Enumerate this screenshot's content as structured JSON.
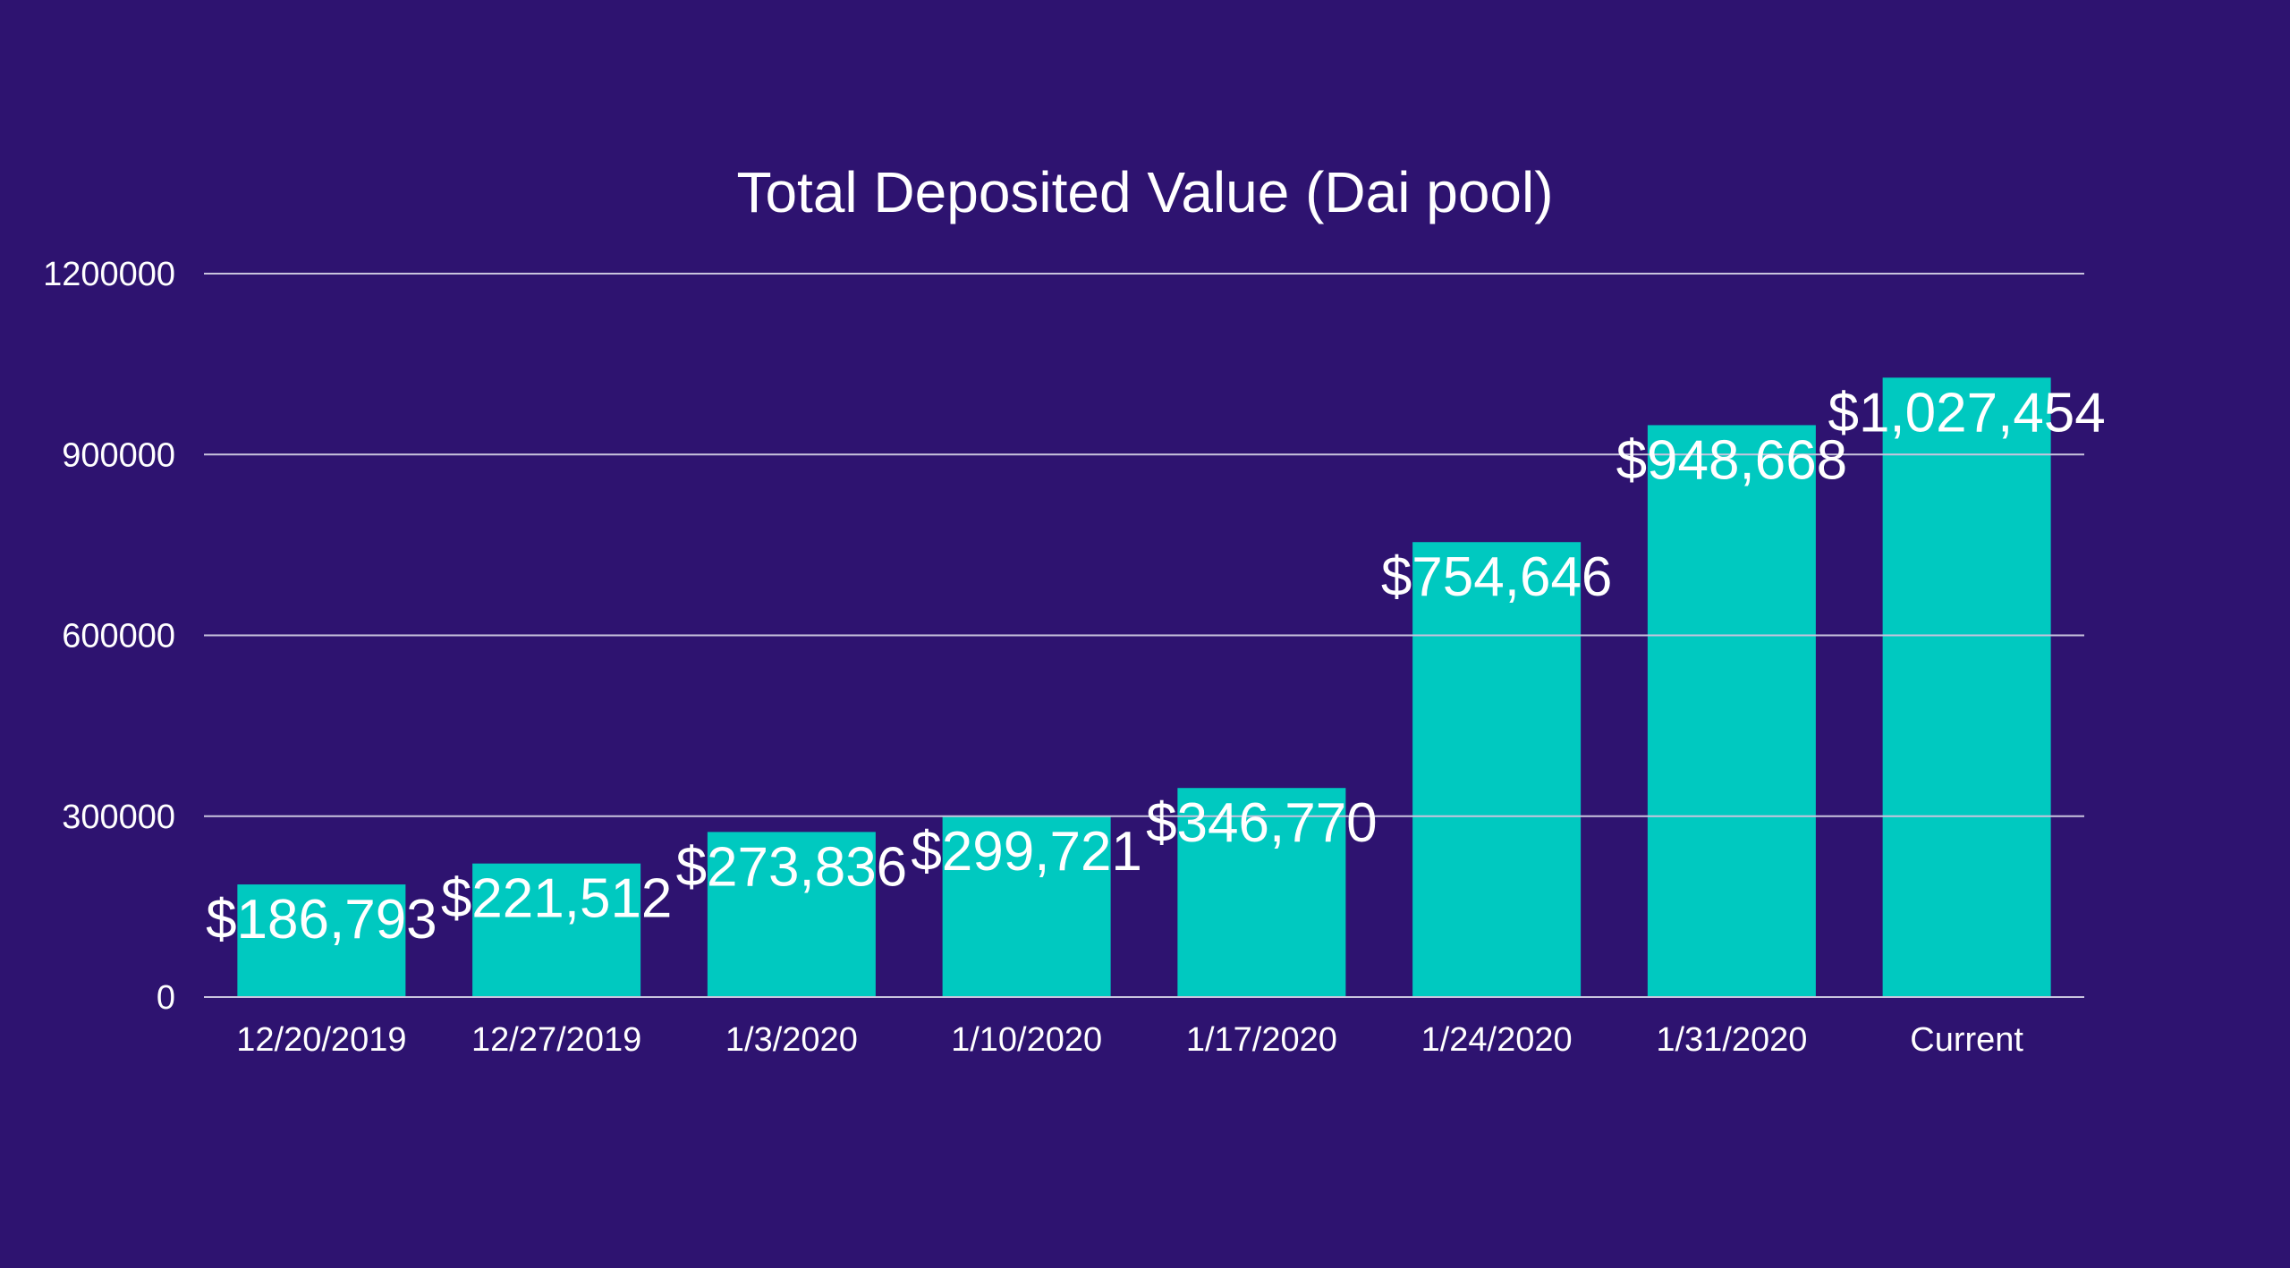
{
  "chart_data": {
    "type": "bar",
    "title": "Total Deposited Value (Dai pool)",
    "xlabel": "",
    "ylabel": "",
    "categories": [
      "12/20/2019",
      "12/27/2019",
      "1/3/2020",
      "1/10/2020",
      "1/17/2020",
      "1/24/2020",
      "1/31/2020",
      "Current"
    ],
    "values": [
      186793,
      221512,
      273836,
      299721,
      346770,
      754646,
      948668,
      1027454
    ],
    "data_labels": [
      "$186,793",
      "$221,512",
      "$273,836",
      "$299,721",
      "$346,770",
      "$754,646",
      "$948,668",
      "$1,027,454"
    ],
    "ylim": [
      0,
      1200000
    ],
    "yticks": [
      0,
      300000,
      600000,
      900000,
      1200000
    ],
    "ytick_labels": [
      "0",
      "300000",
      "600000",
      "900000",
      "1200000"
    ],
    "grid": true,
    "legend": "none"
  },
  "colors": {
    "background": "#2e1370",
    "bar": "#00c9c0",
    "text": "#ffffff",
    "grid": "#c9c4de"
  }
}
